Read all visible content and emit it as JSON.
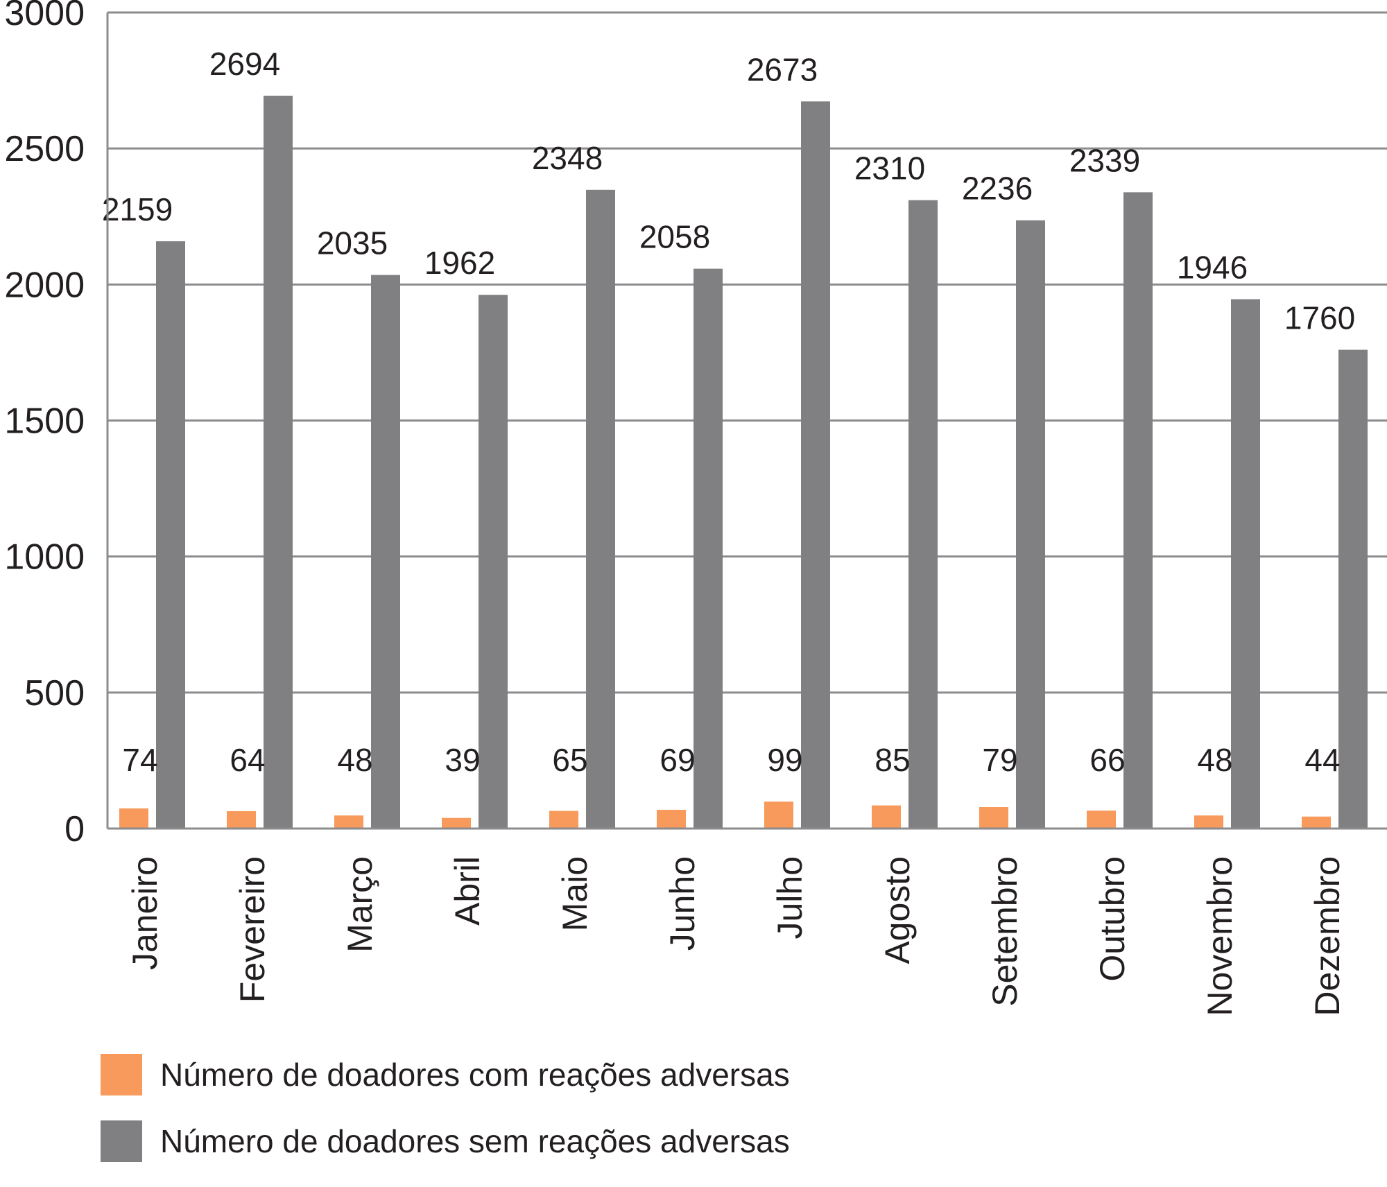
{
  "chart_data": {
    "type": "bar",
    "categories": [
      "Janeiro",
      "Fevereiro",
      "Março",
      "Abril",
      "Maio",
      "Junho",
      "Julho",
      "Agosto",
      "Setembro",
      "Outubro",
      "Novembro",
      "Dezembro"
    ],
    "series": [
      {
        "name": "Número de doadores com reações adversas",
        "color": "#f79a5b",
        "values": [
          74,
          64,
          48,
          39,
          65,
          69,
          99,
          85,
          79,
          66,
          48,
          44
        ]
      },
      {
        "name": "Número de doadores sem reações adversas",
        "color": "#808083",
        "values": [
          2159,
          2694,
          2035,
          1962,
          2348,
          2058,
          2673,
          2310,
          2236,
          2339,
          1946,
          1760
        ]
      }
    ],
    "y_ticks": [
      0,
      500,
      1000,
      1500,
      2000,
      2500,
      3000
    ],
    "ylim": [
      0,
      3000
    ],
    "grid": true,
    "legend_position": "bottom-left",
    "gridline_color": "#8c8c8e"
  }
}
